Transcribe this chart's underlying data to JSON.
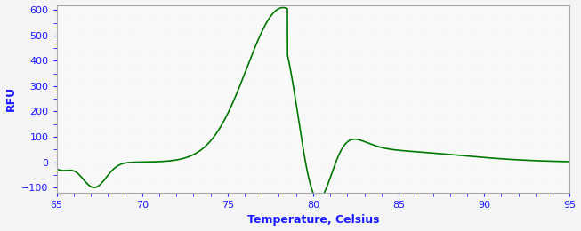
{
  "title": "",
  "xlabel": "Temperature, Celsius",
  "ylabel": "RFU",
  "xlim": [
    65,
    95
  ],
  "ylim": [
    -120,
    620
  ],
  "xticks": [
    65,
    70,
    75,
    80,
    85,
    90,
    95
  ],
  "yticks": [
    -100,
    0,
    100,
    200,
    300,
    400,
    500,
    600
  ],
  "line_color": "#007700",
  "bg_color": "#f4f4f4",
  "plot_bg": "#f8f8f8",
  "grid_color": "#ffffff",
  "label_color": "#1a1aff",
  "tick_color": "#1a1aff",
  "spine_color": "#aaaaaa"
}
